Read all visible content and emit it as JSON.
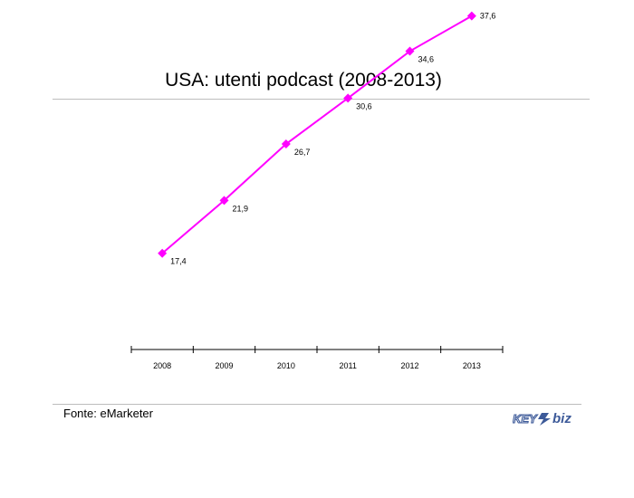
{
  "title": "USA: utenti podcast (2008-2013)",
  "source": "Fonte: eMarketer",
  "logo": {
    "text": "KEY4biz"
  },
  "colors": {
    "series": "#ff00ff",
    "axis": "#000000",
    "rule": "#bdbdbd",
    "logo_blue": "#3d5a99"
  },
  "chart_data": {
    "type": "line",
    "title": "USA: utenti podcast (2008-2013)",
    "xlabel": "",
    "ylabel": "",
    "categories": [
      "2008",
      "2009",
      "2010",
      "2011",
      "2012",
      "2013"
    ],
    "series": [
      {
        "values": [
          17.4,
          21.9,
          26.7,
          30.6,
          34.6,
          37.6
        ]
      }
    ],
    "data_labels": [
      "17,4",
      "21,9",
      "26,7",
      "30,6",
      "34,6",
      "37,6"
    ],
    "marker": "diamond",
    "grid": false,
    "legend": "none"
  }
}
